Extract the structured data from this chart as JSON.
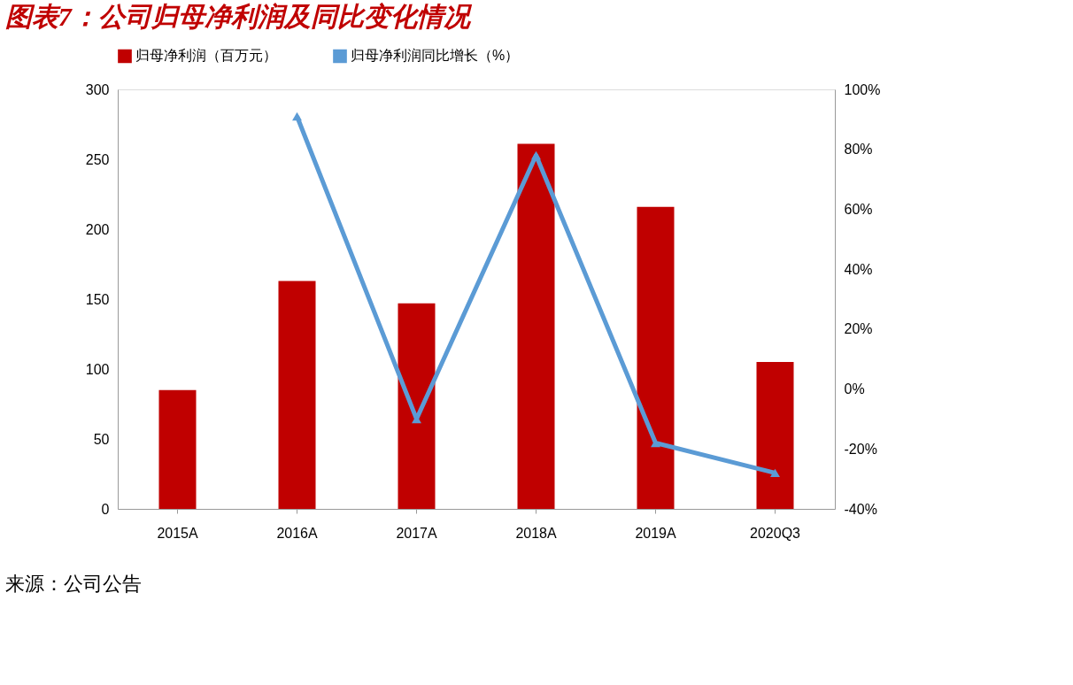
{
  "chart_data": {
    "type": "bar",
    "title": "图表7：公司归母净利润及同比变化情况",
    "categories": [
      "2015A",
      "2016A",
      "2017A",
      "2018A",
      "2019A",
      "2020Q3"
    ],
    "series": [
      {
        "name": "归母净利润（百万元）",
        "color": "#c00000",
        "values": [
          85,
          163,
          147,
          261,
          216,
          105
        ]
      },
      {
        "name": "归母净利润同比增长（%）",
        "type": "line",
        "axis": "y2",
        "color": "#5b9bd5",
        "marker": "triangle",
        "values": [
          null,
          91,
          -10,
          78,
          -18,
          -28
        ]
      }
    ],
    "ylim": [
      0,
      300
    ],
    "yticks": [
      0,
      50,
      100,
      150,
      200,
      250,
      300
    ],
    "y2lim": [
      -40,
      100
    ],
    "y2ticks": [
      {
        "value": -40,
        "label": "-40%"
      },
      {
        "value": -20,
        "label": "-20%"
      },
      {
        "value": 0,
        "label": "0%"
      },
      {
        "value": 20,
        "label": "20%"
      },
      {
        "value": 40,
        "label": "40%"
      },
      {
        "value": 60,
        "label": "60%"
      },
      {
        "value": 80,
        "label": "80%"
      },
      {
        "value": 100,
        "label": "100%"
      }
    ],
    "grid": false,
    "legend": "top",
    "annotations": [
      "来源：公司公告"
    ]
  }
}
